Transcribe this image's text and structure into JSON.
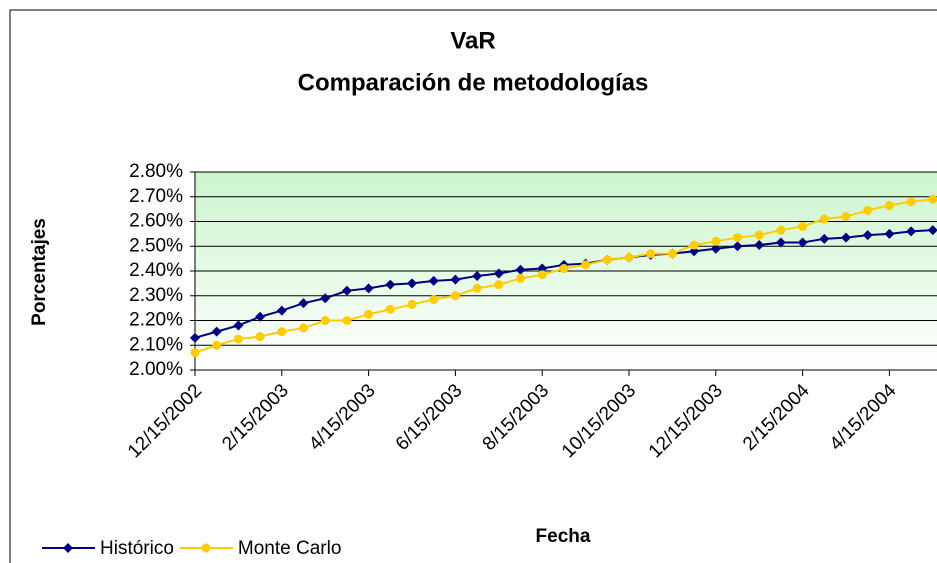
{
  "chart_data": {
    "type": "line",
    "title": "VaR",
    "subtitle": "Comparación de metodologías",
    "x_label": "Fecha",
    "y_label": "Porcentajes",
    "categories": [
      "12/15/2002",
      null,
      null,
      null,
      "2/15/2003",
      null,
      null,
      null,
      "4/15/2003",
      null,
      null,
      null,
      "6/15/2003",
      null,
      null,
      null,
      "8/15/2003",
      null,
      null,
      null,
      "10/15/2003",
      null,
      null,
      null,
      "12/15/2003",
      null,
      null,
      null,
      "2/15/2004",
      null,
      null,
      null,
      "4/15/2004",
      null,
      null
    ],
    "series": [
      {
        "name": "Histórico",
        "color": "#000080",
        "marker": "diamond",
        "values": [
          2.13,
          2.155,
          2.18,
          2.215,
          2.24,
          2.27,
          2.29,
          2.32,
          2.33,
          2.345,
          2.35,
          2.36,
          2.365,
          2.38,
          2.39,
          2.405,
          2.41,
          2.425,
          2.43,
          2.445,
          2.455,
          2.465,
          2.47,
          2.48,
          2.49,
          2.5,
          2.505,
          2.515,
          2.515,
          2.53,
          2.535,
          2.545,
          2.55,
          2.56,
          2.565
        ]
      },
      {
        "name": "Monte Carlo",
        "color": "#ffcc00",
        "marker": "circle",
        "values": [
          2.07,
          2.1,
          2.125,
          2.135,
          2.155,
          2.17,
          2.2,
          2.2,
          2.225,
          2.245,
          2.265,
          2.285,
          2.3,
          2.33,
          2.345,
          2.37,
          2.385,
          2.41,
          2.425,
          2.445,
          2.455,
          2.47,
          2.47,
          2.505,
          2.52,
          2.535,
          2.545,
          2.565,
          2.58,
          2.61,
          2.62,
          2.645,
          2.665,
          2.68,
          2.69
        ]
      }
    ],
    "ylim": [
      2.0,
      2.8
    ],
    "yticks": [
      {
        "value": 2.0,
        "label": "2.00%"
      },
      {
        "value": 2.1,
        "label": "2.10%"
      },
      {
        "value": 2.2,
        "label": "2.20%"
      },
      {
        "value": 2.3,
        "label": "2.30%"
      },
      {
        "value": 2.4,
        "label": "2.40%"
      },
      {
        "value": 2.5,
        "label": "2.50%"
      },
      {
        "value": 2.6,
        "label": "2.60%"
      },
      {
        "value": 2.7,
        "label": "2.70%"
      },
      {
        "value": 2.8,
        "label": "2.80%"
      }
    ],
    "grid": true,
    "legend": "bottom-left"
  }
}
